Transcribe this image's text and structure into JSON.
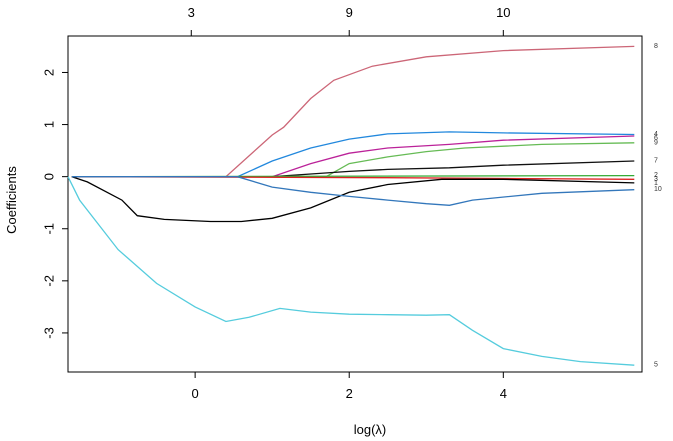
{
  "chart_data": {
    "type": "line",
    "title": "",
    "xlabel": "log(λ)",
    "ylabel": "Coefficients",
    "xlim": [
      -1.65,
      5.8
    ],
    "ylim": [
      -3.75,
      2.7
    ],
    "grid": false,
    "legend": "none",
    "x_ticks": [
      {
        "value": 0,
        "label": "0"
      },
      {
        "value": 2,
        "label": "2"
      },
      {
        "value": 4,
        "label": "4"
      }
    ],
    "y_ticks": [
      {
        "value": 2,
        "label": "2"
      },
      {
        "value": 1,
        "label": "1"
      },
      {
        "value": 0,
        "label": "0"
      },
      {
        "value": -1,
        "label": "-1"
      },
      {
        "value": -2,
        "label": "-2"
      },
      {
        "value": -3,
        "label": "-3"
      }
    ],
    "top_ticks": [
      {
        "value": -0.05,
        "label": "3"
      },
      {
        "value": 2.0,
        "label": "9"
      },
      {
        "value": 4.0,
        "label": "10"
      }
    ],
    "series": [
      {
        "label": "8",
        "color": "#cc6677",
        "points": [
          [
            -1.6,
            0
          ],
          [
            0.4,
            0
          ],
          [
            1.0,
            0.8
          ],
          [
            1.15,
            0.95
          ],
          [
            1.5,
            1.5
          ],
          [
            1.8,
            1.85
          ],
          [
            2.3,
            2.12
          ],
          [
            3.0,
            2.3
          ],
          [
            4.0,
            2.42
          ],
          [
            5.7,
            2.5
          ]
        ]
      },
      {
        "label": "4",
        "color": "#2288dd",
        "points": [
          [
            -1.6,
            0
          ],
          [
            0.55,
            0
          ],
          [
            1.0,
            0.3
          ],
          [
            1.5,
            0.55
          ],
          [
            2.0,
            0.72
          ],
          [
            2.5,
            0.82
          ],
          [
            3.3,
            0.86
          ],
          [
            4.0,
            0.84
          ],
          [
            5.7,
            0.81
          ]
        ]
      },
      {
        "label": "6",
        "color": "#bb2299",
        "points": [
          [
            -1.6,
            0
          ],
          [
            1.0,
            0
          ],
          [
            1.5,
            0.25
          ],
          [
            2.0,
            0.45
          ],
          [
            2.5,
            0.55
          ],
          [
            3.3,
            0.62
          ],
          [
            4.0,
            0.7
          ],
          [
            5.7,
            0.78
          ]
        ]
      },
      {
        "label": "9",
        "color": "#66bb55",
        "points": [
          [
            -1.6,
            0
          ],
          [
            1.7,
            0
          ],
          [
            2.0,
            0.25
          ],
          [
            2.5,
            0.38
          ],
          [
            3.0,
            0.48
          ],
          [
            3.5,
            0.55
          ],
          [
            4.5,
            0.62
          ],
          [
            5.7,
            0.65
          ]
        ]
      },
      {
        "label": "7",
        "color": "#111111",
        "points": [
          [
            -1.6,
            0
          ],
          [
            1.0,
            0
          ],
          [
            1.5,
            0.05
          ],
          [
            2.0,
            0.1
          ],
          [
            2.5,
            0.14
          ],
          [
            3.3,
            0.17
          ],
          [
            4.0,
            0.22
          ],
          [
            5.7,
            0.3
          ]
        ]
      },
      {
        "label": "2",
        "color": "#33aa33",
        "points": [
          [
            -1.6,
            0
          ],
          [
            5.7,
            0.02
          ]
        ]
      },
      {
        "label": "3",
        "color": "#dd2222",
        "points": [
          [
            -1.6,
            0
          ],
          [
            2.5,
            -0.02
          ],
          [
            5.7,
            -0.05
          ]
        ]
      },
      {
        "label": "1",
        "color": "#000000",
        "points": [
          [
            -1.6,
            0
          ],
          [
            -1.4,
            -0.1
          ],
          [
            -0.95,
            -0.45
          ],
          [
            -0.75,
            -0.75
          ],
          [
            -0.4,
            -0.82
          ],
          [
            0.2,
            -0.86
          ],
          [
            0.6,
            -0.86
          ],
          [
            1.0,
            -0.8
          ],
          [
            1.5,
            -0.6
          ],
          [
            2.0,
            -0.3
          ],
          [
            2.5,
            -0.15
          ],
          [
            3.2,
            -0.05
          ],
          [
            4.0,
            -0.05
          ],
          [
            5.7,
            -0.12
          ]
        ]
      },
      {
        "label": "10",
        "color": "#3377bb",
        "points": [
          [
            -1.6,
            0
          ],
          [
            0.55,
            0
          ],
          [
            1.0,
            -0.2
          ],
          [
            1.5,
            -0.3
          ],
          [
            2.0,
            -0.38
          ],
          [
            2.5,
            -0.45
          ],
          [
            3.0,
            -0.52
          ],
          [
            3.3,
            -0.55
          ],
          [
            3.6,
            -0.45
          ],
          [
            4.5,
            -0.32
          ],
          [
            5.7,
            -0.25
          ]
        ]
      },
      {
        "label": "5",
        "color": "#55ccdd",
        "points": [
          [
            -1.65,
            0
          ],
          [
            -1.5,
            -0.45
          ],
          [
            -1.0,
            -1.4
          ],
          [
            -0.5,
            -2.05
          ],
          [
            0.0,
            -2.5
          ],
          [
            0.4,
            -2.78
          ],
          [
            0.7,
            -2.7
          ],
          [
            1.1,
            -2.53
          ],
          [
            1.5,
            -2.6
          ],
          [
            2.0,
            -2.64
          ],
          [
            2.5,
            -2.65
          ],
          [
            3.0,
            -2.66
          ],
          [
            3.3,
            -2.65
          ],
          [
            3.6,
            -2.95
          ],
          [
            4.0,
            -3.3
          ],
          [
            4.5,
            -3.45
          ],
          [
            5.0,
            -3.55
          ],
          [
            5.7,
            -3.62
          ]
        ]
      }
    ]
  }
}
